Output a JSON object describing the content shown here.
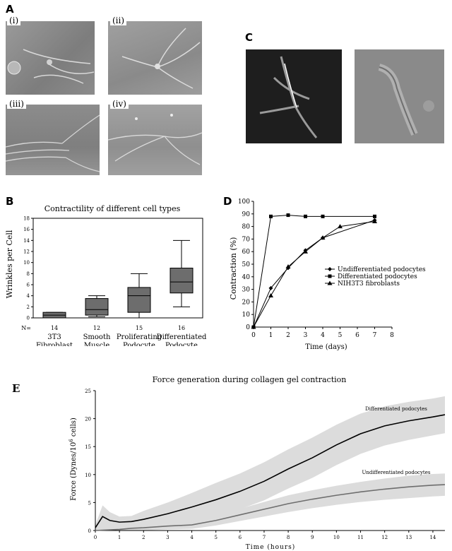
{
  "panels": {
    "A": {
      "letter": "A",
      "subpanels": [
        "(i)",
        "(ii)",
        "(iii)",
        "(iv)"
      ]
    },
    "B": {
      "letter": "B"
    },
    "C": {
      "letter": "C"
    },
    "D": {
      "letter": "D"
    },
    "E": {
      "letter": "E"
    }
  },
  "chart_data": [
    {
      "type": "box",
      "title": "Contractility of different cell types",
      "ylabel": "Wrinkles per Cell",
      "ylim": [
        0,
        18
      ],
      "yticks": [
        0,
        2,
        4,
        6,
        8,
        10,
        12,
        14,
        16,
        18
      ],
      "n_label": "N=",
      "categories": [
        {
          "name_lines": [
            "3T3",
            "Fibroblast"
          ],
          "n": "14",
          "min": 0,
          "q1": 0,
          "median": 0.5,
          "q3": 1,
          "max": 1
        },
        {
          "name_lines": [
            "Smooth",
            "Muscle"
          ],
          "n": "12",
          "min": 0.2,
          "q1": 0.5,
          "median": 1.5,
          "q3": 3.5,
          "max": 4
        },
        {
          "name_lines": [
            "Proliferating",
            "Podocyte"
          ],
          "n": "15",
          "min": 0,
          "q1": 1,
          "median": 4,
          "q3": 5.5,
          "max": 8
        },
        {
          "name_lines": [
            "Differentiated",
            "Podocyte"
          ],
          "n": "16",
          "min": 2,
          "q1": 4.5,
          "median": 6.5,
          "q3": 9,
          "max": 14
        }
      ]
    },
    {
      "type": "line",
      "xlabel": "Time (days)",
      "ylabel": "Contraction (%)",
      "xlim": [
        0,
        8
      ],
      "ylim": [
        0,
        100
      ],
      "xticks": [
        "0",
        "1",
        "2",
        "3",
        "4",
        "5",
        "6",
        "7",
        "8"
      ],
      "yticks": [
        "0",
        "10",
        "20",
        "30",
        "40",
        "50",
        "60",
        "70",
        "80",
        "90",
        "100"
      ],
      "legend_position": "right",
      "series": [
        {
          "name": "Undifferentiated podocytes",
          "marker": "diamond",
          "x": [
            0,
            1,
            2,
            3,
            4,
            7
          ],
          "y": [
            0,
            31,
            47,
            61,
            71,
            85
          ]
        },
        {
          "name": "Differentiated podocytes",
          "marker": "square",
          "x": [
            0,
            1,
            2,
            3,
            4,
            7
          ],
          "y": [
            0,
            88,
            89,
            88,
            88,
            88
          ]
        },
        {
          "name": "NIH3T3 fibroblasts",
          "marker": "triangle",
          "x": [
            0,
            1,
            2,
            3,
            4,
            5,
            7
          ],
          "y": [
            0,
            25,
            48,
            60,
            71,
            80,
            84
          ]
        }
      ]
    },
    {
      "type": "line",
      "title": "Force generation during collagen gel contraction",
      "xlabel": "Time (hours)",
      "ylabel_main": "Force (Dynes/10",
      "ylabel_sup": "6",
      "ylabel_tail": " cells)",
      "xlim": [
        0,
        14.5
      ],
      "ylim": [
        0,
        25
      ],
      "xticks": [
        "0",
        "1",
        "2",
        "3",
        "4",
        "5",
        "6",
        "7",
        "8",
        "9",
        "10",
        "11",
        "12",
        "13",
        "14"
      ],
      "yticks": [
        "0",
        "5",
        "10",
        "15",
        "20",
        "25"
      ],
      "series": [
        {
          "name": "Differentiated podocytes",
          "x": [
            0,
            0.3,
            0.6,
            1,
            1.5,
            2,
            3,
            4,
            5,
            6,
            7,
            8,
            9,
            10,
            11,
            12,
            13,
            14,
            14.5
          ],
          "y": [
            0.5,
            2.5,
            1.8,
            1.5,
            1.6,
            2,
            3,
            4.2,
            5.5,
            7,
            8.8,
            11,
            13,
            15.3,
            17.3,
            18.7,
            19.6,
            20.3,
            20.7
          ],
          "band": [
            0,
            3.5,
            3,
            2,
            2,
            2.2,
            3,
            4.2,
            5.5,
            7,
            8.8,
            11,
            13,
            15.3,
            17.3,
            18.7,
            19.6,
            20.3,
            20.7
          ],
          "band_width": [
            0.5,
            2,
            1.5,
            1,
            1,
            1.5,
            2,
            2.5,
            3,
            3.2,
            3.4,
            3.5,
            3.6,
            3.6,
            3.6,
            3.5,
            3.4,
            3.3,
            3.3
          ]
        },
        {
          "name": "Undifferentiated podocytes",
          "x": [
            0,
            0.5,
            1,
            1.5,
            2,
            3,
            4,
            5,
            6,
            7,
            8,
            9,
            10,
            11,
            12,
            13,
            14,
            14.5
          ],
          "y": [
            0,
            0.1,
            0.2,
            0.4,
            0.5,
            0.8,
            1,
            1.8,
            2.8,
            3.8,
            4.8,
            5.6,
            6.3,
            6.9,
            7.4,
            7.8,
            8.1,
            8.2
          ],
          "band_width": [
            0.5,
            2,
            1.2,
            0.8,
            0.6,
            0.6,
            0.7,
            0.9,
            1.1,
            1.3,
            1.5,
            1.6,
            1.7,
            1.8,
            1.9,
            2,
            2,
            2
          ]
        }
      ]
    }
  ]
}
